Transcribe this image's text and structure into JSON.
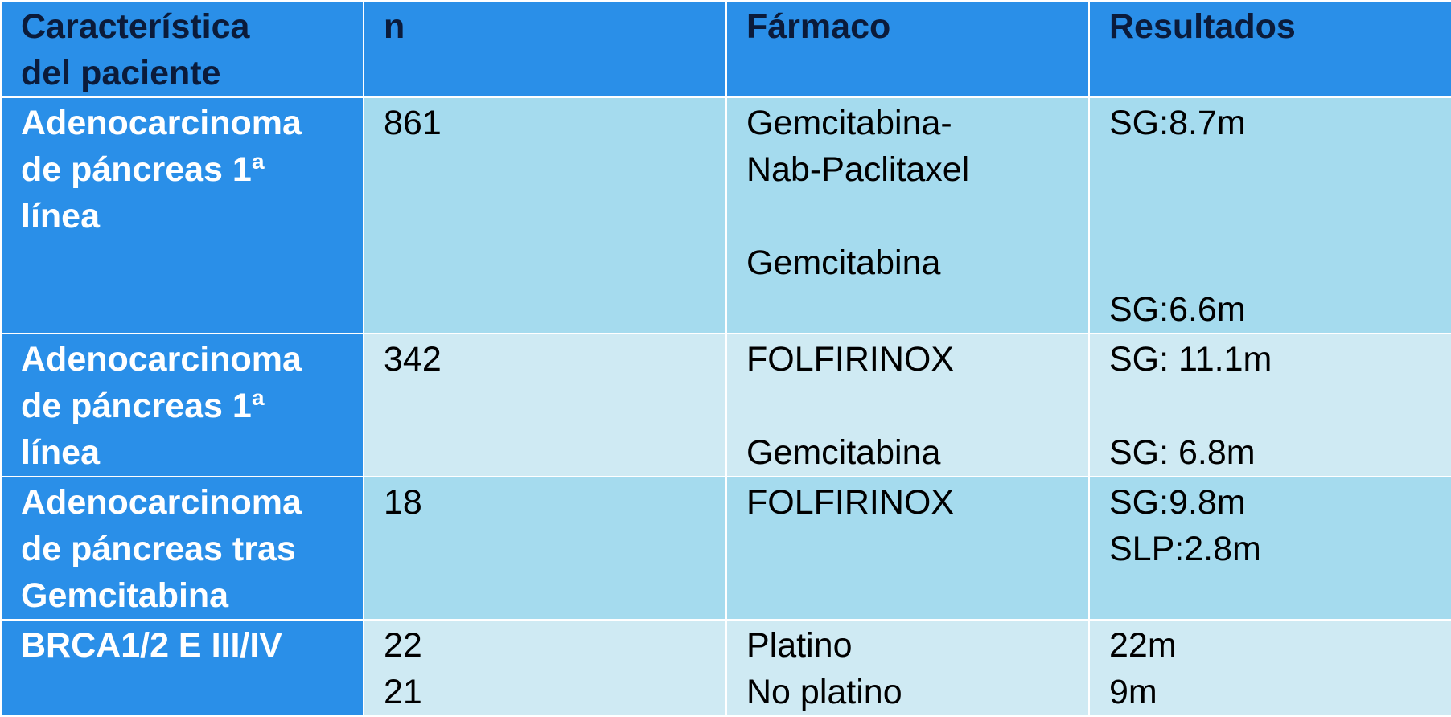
{
  "table": {
    "headers": {
      "characteristic": [
        "Característica",
        "del paciente"
      ],
      "n": "n",
      "drug": "Fármaco",
      "results": "Resultados"
    },
    "rows": [
      {
        "characteristic": [
          "Adenocarcinoma",
          "de páncreas 1ª",
          "línea"
        ],
        "n": [
          "861"
        ],
        "drug": [
          "Gemcitabina-",
          "Nab-Paclitaxel",
          "Gemcitabina"
        ],
        "results": [
          "SG:8.7m",
          "SG:6.6m"
        ]
      },
      {
        "characteristic": [
          "Adenocarcinoma",
          "de páncreas 1ª",
          "línea"
        ],
        "n": [
          "342"
        ],
        "drug": [
          "FOLFIRINOX",
          "Gemcitabina"
        ],
        "results": [
          "SG: 11.1m",
          "SG: 6.8m"
        ]
      },
      {
        "characteristic": [
          "Adenocarcinoma",
          "de páncreas tras",
          "Gemcitabina"
        ],
        "n": [
          "18"
        ],
        "drug": [
          "FOLFIRINOX"
        ],
        "results": [
          "SG:9.8m",
          "SLP:2.8m"
        ]
      },
      {
        "characteristic": [
          "BRCA1/2 E III/IV"
        ],
        "n": [
          "22",
          "21"
        ],
        "drug": [
          "Platino",
          "No platino"
        ],
        "results": [
          "22m",
          "9m"
        ]
      }
    ]
  },
  "colors": {
    "header_bg": "#2a8fe8",
    "row_dark": "#a5dbee",
    "row_light": "#cfeaf3"
  }
}
